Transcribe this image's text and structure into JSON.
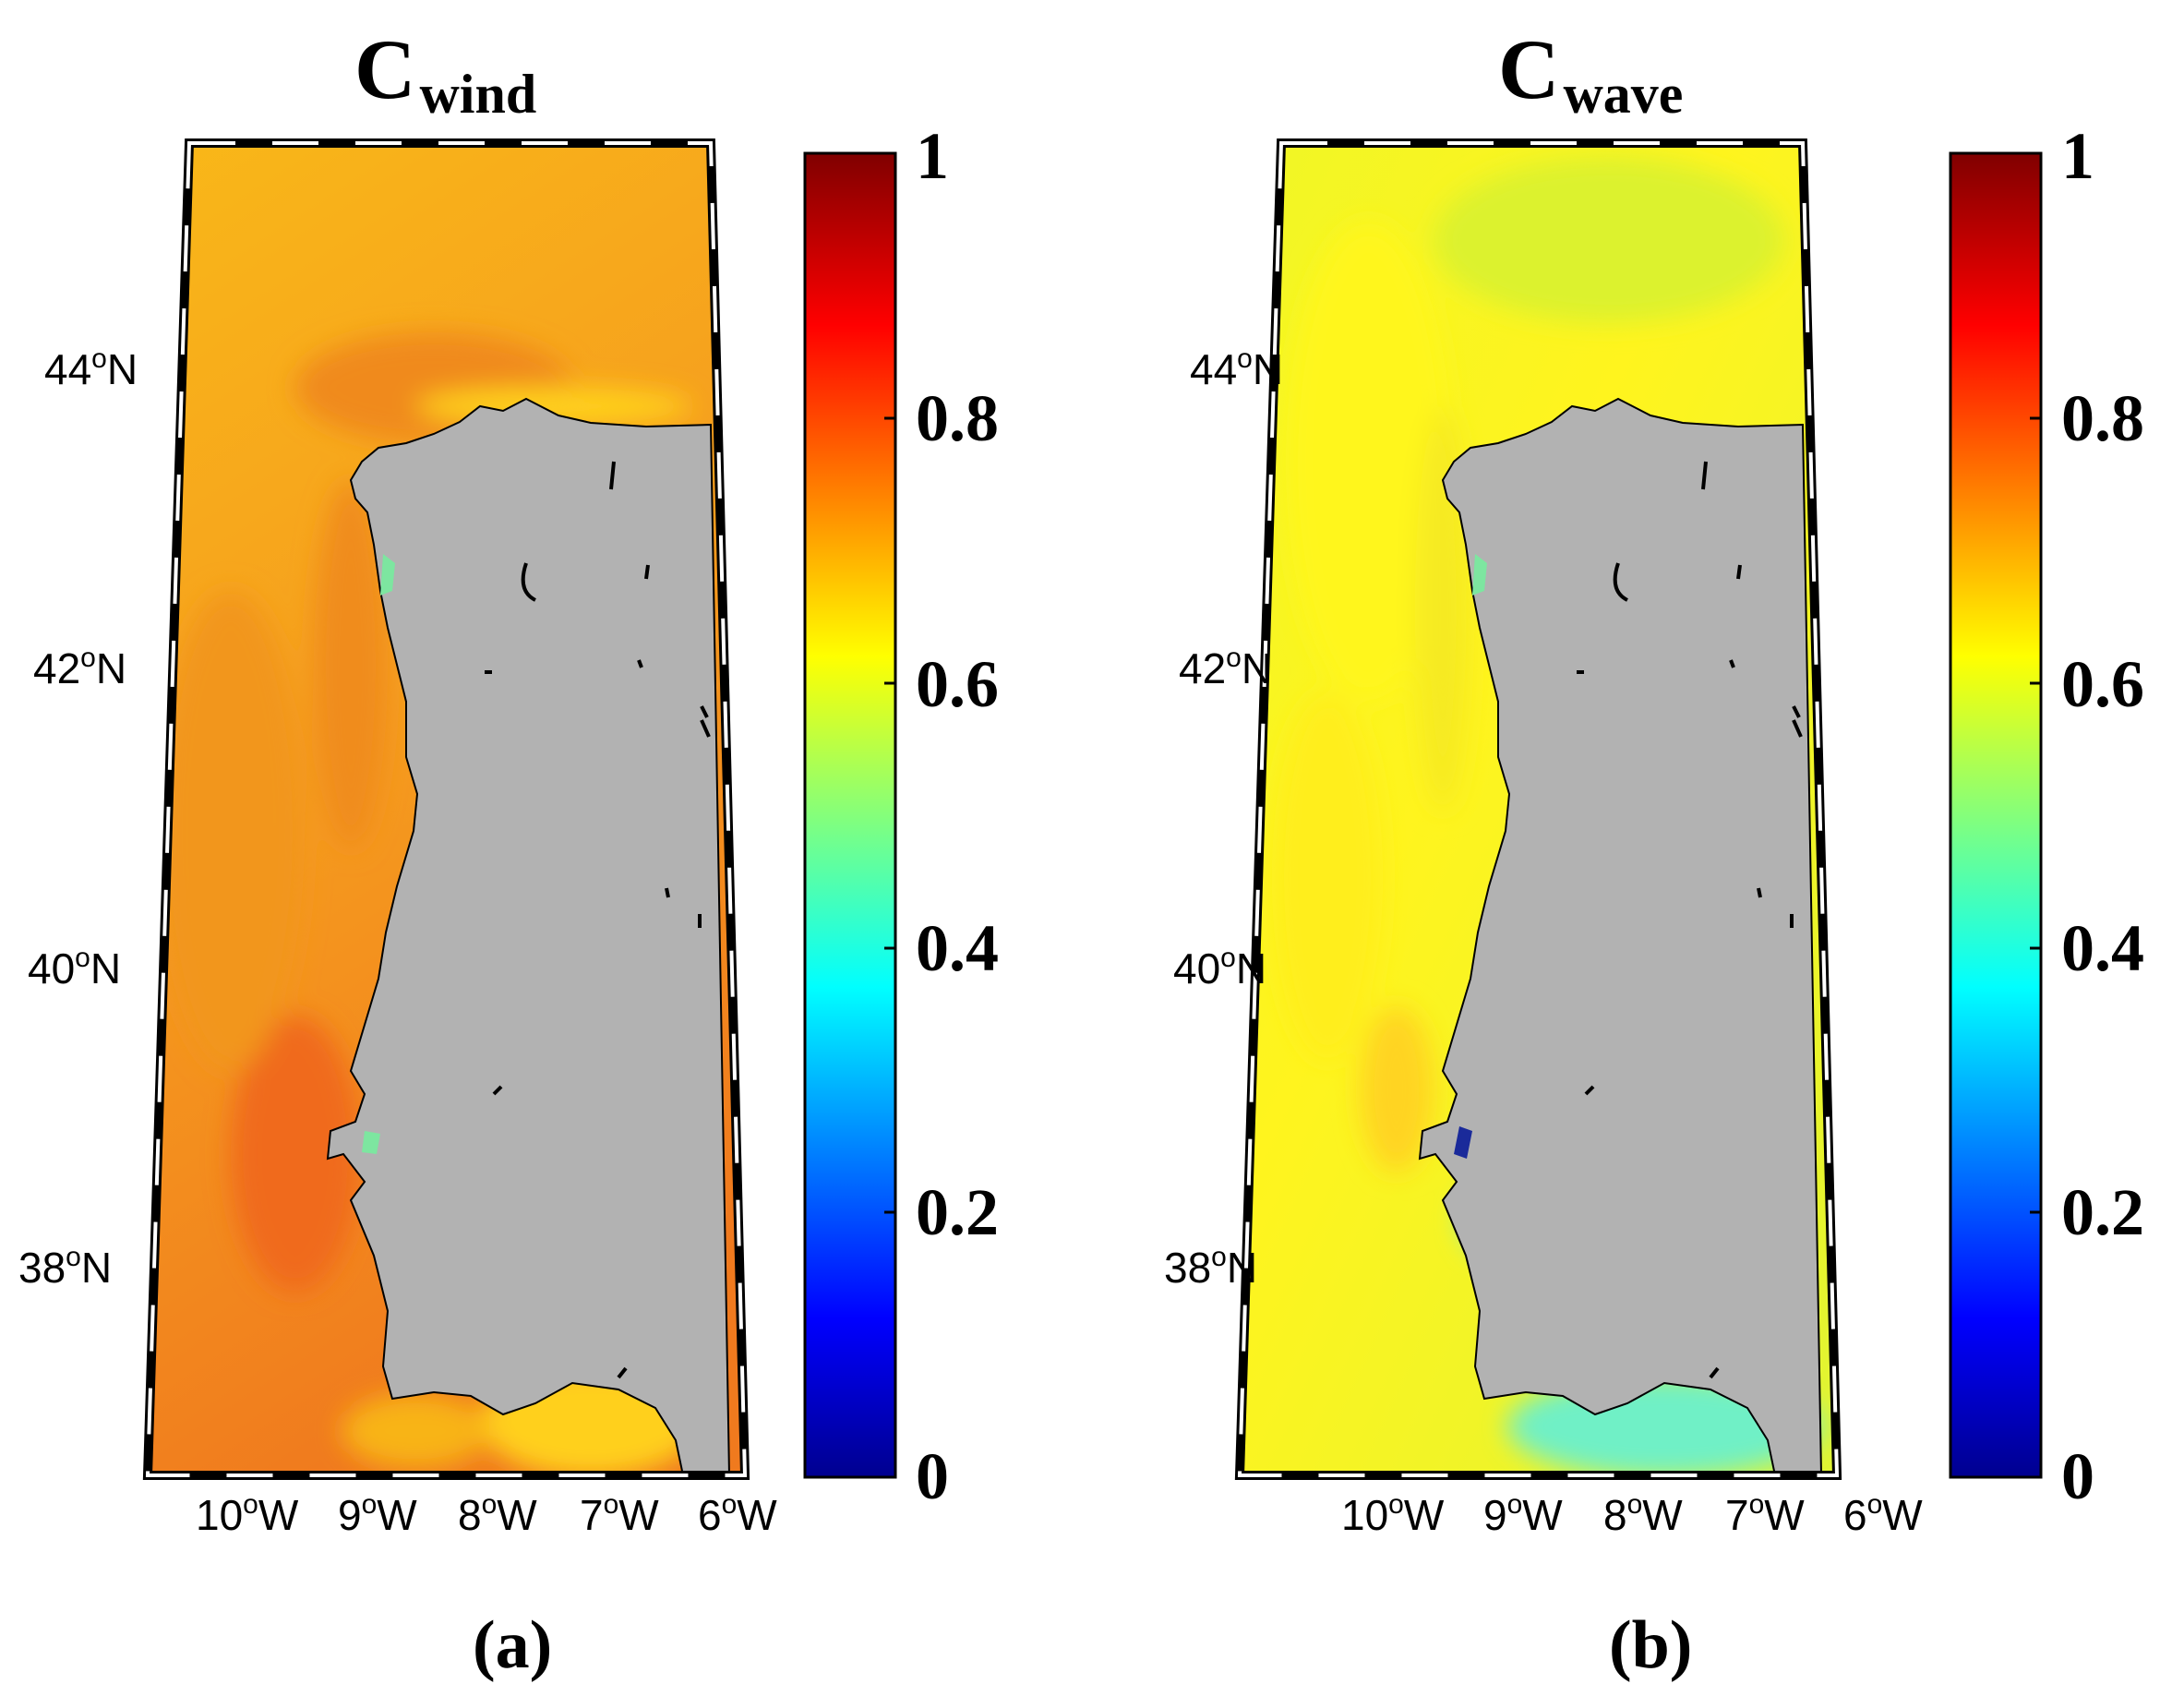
{
  "panels": [
    {
      "title_main": "C",
      "title_sub": "wind",
      "caption": "(a)",
      "description": "Wind energy coefficient map off the Iberian Peninsula"
    },
    {
      "title_main": "C",
      "title_sub": "wave",
      "caption": "(b)",
      "description": "Wave energy coefficient map off the Iberian Peninsula"
    }
  ],
  "lat_labels": [
    {
      "num": "44",
      "hemi": "N"
    },
    {
      "num": "42",
      "hemi": "N"
    },
    {
      "num": "40",
      "hemi": "N"
    },
    {
      "num": "38",
      "hemi": "N"
    }
  ],
  "lon_labels": [
    {
      "num": "10",
      "hemi": "W"
    },
    {
      "num": "9",
      "hemi": "W"
    },
    {
      "num": "8",
      "hemi": "W"
    },
    {
      "num": "7",
      "hemi": "W"
    },
    {
      "num": "6",
      "hemi": "W"
    }
  ],
  "degree_symbol": "o",
  "colorbar": {
    "ticks": [
      "1",
      "0.8",
      "0.6",
      "0.4",
      "0.2",
      "0"
    ],
    "range": [
      0,
      1
    ],
    "colormap": "jet",
    "colors": [
      "#00008f",
      "#0000ff",
      "#00ffff",
      "#ffff00",
      "#ff0000",
      "#800000"
    ]
  },
  "colors": {
    "land": "#b2b2b2",
    "wind_ocean": "#f4a21e",
    "wind_ocean_dark": "#f07c1e",
    "wind_coast": "#ffd21c",
    "wave_ocean": "#eaf42a",
    "wave_ocean_warm": "#fff21e",
    "wave_coast": "#60f0c8"
  }
}
